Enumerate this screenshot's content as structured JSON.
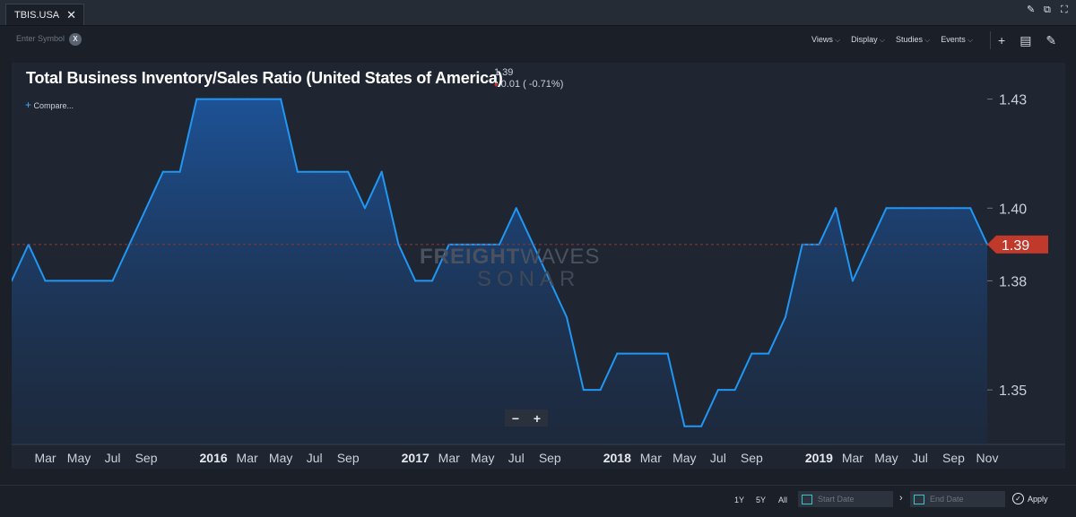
{
  "tab": {
    "label": "TBIS.USA",
    "close": "✕"
  },
  "window_icons": [
    "✎",
    "⧉",
    "⛶"
  ],
  "toolbar": {
    "symbol_placeholder": "Enter Symbol",
    "clear": "X",
    "menus": [
      "Views",
      "Display",
      "Studies",
      "Events"
    ],
    "icons": [
      "plus-icon",
      "comment-icon",
      "pencil-icon"
    ]
  },
  "chart": {
    "title": "Total Business Inventory/Sales Ratio (United States of America)",
    "last_value": "1.39",
    "change": "0.01 ( -0.71%)",
    "change_color": "#d0312d",
    "compare_label": "Compare...",
    "zoom_out": "−",
    "zoom_in": "+",
    "watermark_line1_bold": "FREIGHT",
    "watermark_line1_thin": "WAVES",
    "watermark_line2": "SONAR",
    "current_badge": "1.39",
    "line_color": "#2196f3",
    "badge_color": "#c0392b"
  },
  "chart_data": {
    "type": "area",
    "title": "Total Business Inventory/Sales Ratio (United States of America)",
    "x": [
      "2015-01",
      "2015-02",
      "2015-03",
      "2015-04",
      "2015-05",
      "2015-06",
      "2015-07",
      "2015-08",
      "2015-09",
      "2015-10",
      "2015-11",
      "2015-12",
      "2016-01",
      "2016-02",
      "2016-03",
      "2016-04",
      "2016-05",
      "2016-06",
      "2016-07",
      "2016-08",
      "2016-09",
      "2016-10",
      "2016-11",
      "2016-12",
      "2017-01",
      "2017-02",
      "2017-03",
      "2017-04",
      "2017-05",
      "2017-06",
      "2017-07",
      "2017-08",
      "2017-09",
      "2017-10",
      "2017-11",
      "2017-12",
      "2018-01",
      "2018-02",
      "2018-03",
      "2018-04",
      "2018-05",
      "2018-06",
      "2018-07",
      "2018-08",
      "2018-09",
      "2018-10",
      "2018-11",
      "2018-12",
      "2019-01",
      "2019-02",
      "2019-03",
      "2019-04",
      "2019-05",
      "2019-06",
      "2019-07",
      "2019-08",
      "2019-09",
      "2019-10",
      "2019-11"
    ],
    "series": [
      {
        "values": [
          1.38,
          1.39,
          1.38,
          1.38,
          1.38,
          1.38,
          1.38,
          1.39,
          1.4,
          1.41,
          1.41,
          1.43,
          1.43,
          1.43,
          1.43,
          1.43,
          1.43,
          1.41,
          1.41,
          1.41,
          1.41,
          1.4,
          1.41,
          1.39,
          1.38,
          1.38,
          1.39,
          1.39,
          1.39,
          1.39,
          1.4,
          1.39,
          1.38,
          1.37,
          1.35,
          1.35,
          1.36,
          1.36,
          1.36,
          1.36,
          1.34,
          1.34,
          1.35,
          1.35,
          1.36,
          1.36,
          1.37,
          1.39,
          1.39,
          1.4,
          1.38,
          1.39,
          1.4,
          1.4,
          1.4,
          1.4,
          1.4,
          1.4,
          1.39
        ]
      }
    ],
    "y_ticks": [
      "1.43",
      "1.40",
      "1.38",
      "1.35"
    ],
    "x_tick_labels": [
      "Mar",
      "May",
      "Jul",
      "Sep",
      "2016",
      "Mar",
      "May",
      "Jul",
      "Sep",
      "2017",
      "Mar",
      "May",
      "Jul",
      "Sep",
      "2018",
      "Mar",
      "May",
      "Jul",
      "Sep",
      "2019",
      "Mar",
      "May",
      "Jul",
      "Sep",
      "Nov"
    ],
    "ylim": [
      1.335,
      1.44
    ],
    "grid": false
  },
  "bottom": {
    "ranges": [
      "1Y",
      "5Y",
      "All"
    ],
    "start_placeholder": "Start Date",
    "end_placeholder": "End Date",
    "separator": "›",
    "apply": "Apply",
    "apply_check": "✓"
  }
}
